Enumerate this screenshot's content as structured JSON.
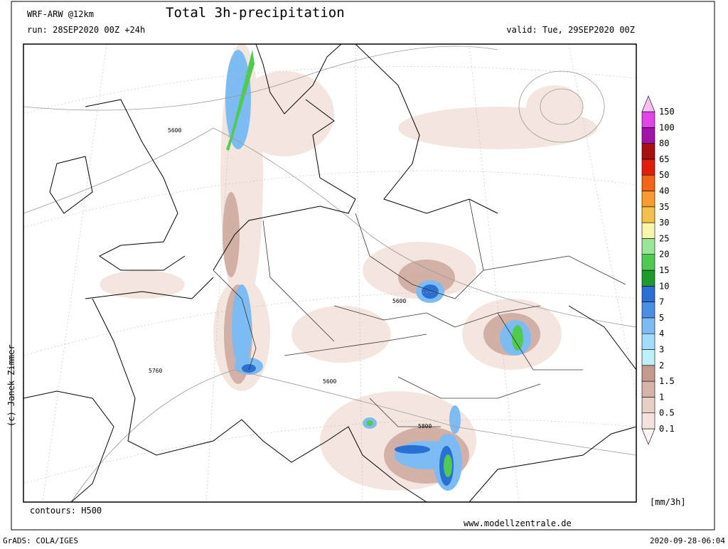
{
  "header": {
    "model": "WRF-ARW @12km",
    "title": "Total 3h-precipitation",
    "run": "run: 28SEP2020 00Z +24h",
    "valid": "valid: Tue, 29SEP2020 00Z"
  },
  "map": {
    "contour_labels": [
      "5600",
      "5600",
      "5760",
      "5600",
      "5800"
    ],
    "credit": "(c) Janek Zimmer",
    "contours": "contours: H500",
    "website": "www.modellzentrale.de"
  },
  "colorbar": {
    "unit": "[mm/3h]",
    "levels": [
      "0.1",
      "0.5",
      "1",
      "1.5",
      "2",
      "3",
      "4",
      "5",
      "7",
      "10",
      "15",
      "20",
      "25",
      "30",
      "35",
      "40",
      "50",
      "65",
      "80",
      "100",
      "150"
    ],
    "colors": [
      "#fdf6f2",
      "#f3e3dc",
      "#e6cfc5",
      "#d6b3a7",
      "#c49a8d",
      "#bdf0fb",
      "#a2dcfa",
      "#7cbcf3",
      "#4a8fe6",
      "#2a6fd3",
      "#1e9a2a",
      "#4fcc4f",
      "#98e698",
      "#f8f6a8",
      "#f5c04a",
      "#f89a30",
      "#f26418",
      "#e01e0c",
      "#a81010",
      "#a014a8",
      "#e044e6",
      "#f4c0f4"
    ]
  },
  "footer": {
    "software": "GrADS: COLA/IGES",
    "timestamp": "2020-09-28-06:04"
  }
}
